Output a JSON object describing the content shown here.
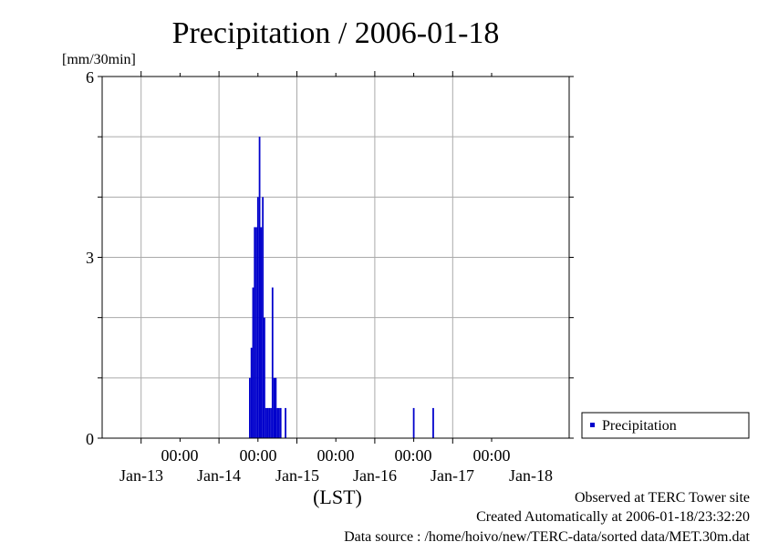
{
  "chart_data": {
    "type": "bar",
    "title": "Precipitation / 2006-01-18",
    "ylabel": "[mm/30min]",
    "xlabel": "(LST)",
    "ylim": [
      0,
      6
    ],
    "y_ticks": [
      "0",
      "3",
      "6"
    ],
    "x_time_ticks": [
      "00:00",
      "00:00",
      "00:00",
      "00:00",
      "00:00"
    ],
    "x_date_ticks": [
      "Jan-13",
      "Jan-14",
      "Jan-15",
      "Jan-16",
      "Jan-17",
      "Jan-18"
    ],
    "grid": true,
    "legend_position": "right",
    "series": [
      {
        "name": "Precipitation",
        "color": "#0000cc",
        "x": [
          "2006-01-14 09:30",
          "2006-01-14 10:00",
          "2006-01-14 10:30",
          "2006-01-14 11:00",
          "2006-01-14 11:30",
          "2006-01-14 12:00",
          "2006-01-14 12:30",
          "2006-01-14 13:00",
          "2006-01-14 13:30",
          "2006-01-14 14:00",
          "2006-01-14 14:30",
          "2006-01-14 15:00",
          "2006-01-14 15:30",
          "2006-01-14 16:00",
          "2006-01-14 16:30",
          "2006-01-14 17:00",
          "2006-01-14 17:30",
          "2006-01-14 18:00",
          "2006-01-14 18:30",
          "2006-01-14 19:00",
          "2006-01-14 20:30",
          "2006-01-16 12:00",
          "2006-01-16 18:00"
        ],
        "values": [
          1.0,
          1.5,
          2.5,
          3.5,
          3.5,
          4.0,
          5.0,
          3.5,
          4.0,
          2.0,
          0.5,
          0.5,
          0.5,
          0.5,
          2.5,
          1.0,
          1.0,
          0.5,
          0.5,
          0.5,
          0.5,
          0.5,
          0.5
        ]
      }
    ]
  },
  "legend": {
    "label": "Precipitation",
    "color": "#0000cc"
  },
  "footer": {
    "line1": "Observed at TERC Tower site",
    "line2": "Created Automatically at 2006-01-18/23:32:20",
    "line3": "Data source : /home/hoivo/new/TERC-data/sorted  data/MET.30m.dat"
  }
}
